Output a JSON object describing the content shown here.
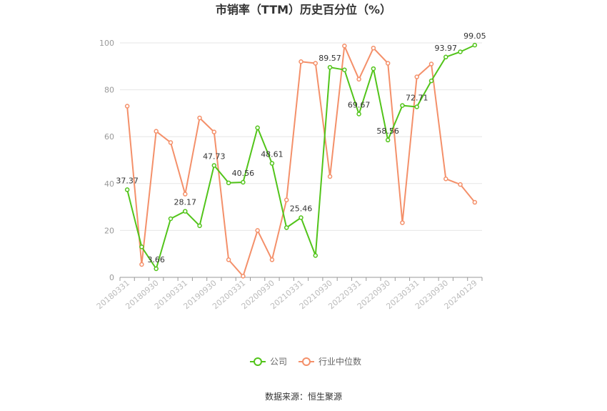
{
  "chart_data": {
    "type": "line",
    "title": "市销率（TTM）历史百分位（%）",
    "ylim": [
      0,
      100
    ],
    "yticks": [
      0,
      20,
      40,
      60,
      80,
      100
    ],
    "x_tick_labels": [
      "20180331",
      "20180930",
      "20190331",
      "20190930",
      "20200331",
      "20200930",
      "20210331",
      "20210930",
      "20220331",
      "20220930",
      "20230331",
      "20230930",
      "20240129"
    ],
    "series": [
      {
        "name": "公司",
        "color": "#52c41a",
        "values": [
          37.37,
          13,
          3.66,
          25,
          28.17,
          22,
          47.73,
          40.3,
          40.56,
          63.8,
          48.61,
          21.2,
          25.46,
          9.3,
          89.57,
          88.5,
          69.67,
          89,
          58.56,
          73.3,
          72.71,
          83.8,
          93.97,
          96.2,
          99.05
        ]
      },
      {
        "name": "行业中位数",
        "color": "#f4906a",
        "values": [
          73,
          5.5,
          62.3,
          57.5,
          35.5,
          68,
          62,
          7.5,
          0.5,
          20,
          7.5,
          33,
          92,
          91.3,
          43,
          98.7,
          84.5,
          97.8,
          91.3,
          23.3,
          85.5,
          91,
          42,
          39.6,
          32
        ]
      }
    ],
    "data_labels": [
      {
        "index": 0,
        "text": "37.37"
      },
      {
        "index": 2,
        "text": "3.66"
      },
      {
        "index": 4,
        "text": "28.17"
      },
      {
        "index": 6,
        "text": "47.73"
      },
      {
        "index": 8,
        "text": "40.56"
      },
      {
        "index": 10,
        "text": "48.61"
      },
      {
        "index": 12,
        "text": "25.46"
      },
      {
        "index": 14,
        "text": "89.57"
      },
      {
        "index": 16,
        "text": "69.67"
      },
      {
        "index": 18,
        "text": "58.56"
      },
      {
        "index": 20,
        "text": "72.71"
      },
      {
        "index": 22,
        "text": "93.97"
      },
      {
        "index": 24,
        "text": "99.05"
      }
    ],
    "grid": true,
    "legend_position": "bottom"
  },
  "source": "数据来源：恒生聚源"
}
